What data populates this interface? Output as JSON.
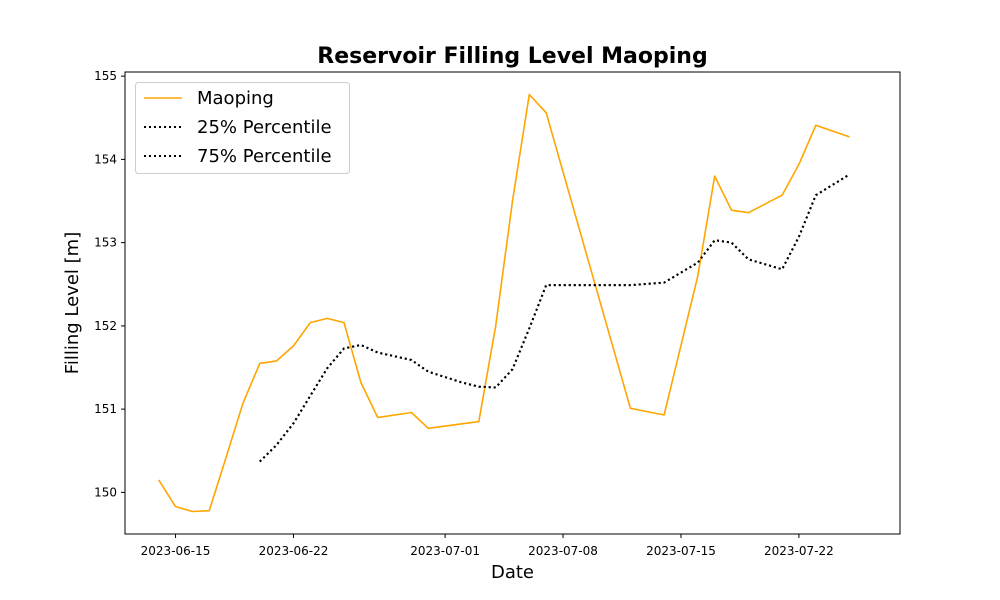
{
  "chart_data": {
    "type": "line",
    "title": "Reservoir Filling Level Maoping",
    "xlabel": "Date",
    "ylabel": "Filling Level [m]",
    "xlim": [
      "2023-06-12",
      "2023-07-28"
    ],
    "ylim": [
      149.5,
      155.05
    ],
    "x_ticks": [
      "2023-06-15",
      "2023-06-22",
      "2023-07-01",
      "2023-07-08",
      "2023-07-15",
      "2023-07-22"
    ],
    "y_ticks": [
      "150",
      "151",
      "152",
      "153",
      "154",
      "155"
    ],
    "grid": false,
    "legend_position": "upper-left",
    "series": [
      {
        "name": "Maoping",
        "color": "#ffa500",
        "style": "solid",
        "points": [
          [
            "2023-06-14",
            150.15
          ],
          [
            "2023-06-15",
            149.83
          ],
          [
            "2023-06-16",
            149.77
          ],
          [
            "2023-06-17",
            149.78
          ],
          [
            "2023-06-18",
            150.42
          ],
          [
            "2023-06-19",
            151.07
          ],
          [
            "2023-06-20",
            151.55
          ],
          [
            "2023-06-21",
            151.58
          ],
          [
            "2023-06-22",
            151.76
          ],
          [
            "2023-06-23",
            152.04
          ],
          [
            "2023-06-24",
            152.09
          ],
          [
            "2023-06-25",
            152.04
          ],
          [
            "2023-06-26",
            151.32
          ],
          [
            "2023-06-27",
            150.9
          ],
          [
            "2023-06-29",
            150.96
          ],
          [
            "2023-06-30",
            150.77
          ],
          [
            "2023-07-03",
            150.85
          ],
          [
            "2023-07-04",
            152.0
          ],
          [
            "2023-07-05",
            153.5
          ],
          [
            "2023-07-06",
            154.78
          ],
          [
            "2023-07-07",
            154.56
          ],
          [
            "2023-07-12",
            151.01
          ],
          [
            "2023-07-14",
            150.93
          ],
          [
            "2023-07-16",
            152.6
          ],
          [
            "2023-07-17",
            153.8
          ],
          [
            "2023-07-18",
            153.39
          ],
          [
            "2023-07-19",
            153.36
          ],
          [
            "2023-07-21",
            153.57
          ],
          [
            "2023-07-22",
            153.94
          ],
          [
            "2023-07-23",
            154.41
          ],
          [
            "2023-07-25",
            154.27
          ]
        ]
      },
      {
        "name": "25% Percentile",
        "color": "#000000",
        "style": "dotted",
        "points": [
          [
            "2023-06-20",
            150.37
          ],
          [
            "2023-06-21",
            150.57
          ],
          [
            "2023-06-22",
            150.83
          ],
          [
            "2023-06-23",
            151.16
          ],
          [
            "2023-06-24",
            151.49
          ],
          [
            "2023-06-25",
            151.73
          ],
          [
            "2023-06-26",
            151.77
          ],
          [
            "2023-06-27",
            151.68
          ],
          [
            "2023-06-29",
            151.59
          ],
          [
            "2023-06-30",
            151.45
          ],
          [
            "2023-07-02",
            151.32
          ],
          [
            "2023-07-03",
            151.27
          ],
          [
            "2023-07-04",
            151.26
          ],
          [
            "2023-07-05",
            151.48
          ],
          [
            "2023-07-06",
            151.97
          ],
          [
            "2023-07-07",
            152.49
          ],
          [
            "2023-07-10",
            152.49
          ],
          [
            "2023-07-12",
            152.49
          ],
          [
            "2023-07-14",
            152.52
          ],
          [
            "2023-07-16",
            152.76
          ],
          [
            "2023-07-17",
            153.03
          ],
          [
            "2023-07-18",
            153.0
          ],
          [
            "2023-07-19",
            152.8
          ],
          [
            "2023-07-21",
            152.68
          ],
          [
            "2023-07-22",
            153.07
          ],
          [
            "2023-07-23",
            153.57
          ],
          [
            "2023-07-25",
            153.82
          ]
        ]
      },
      {
        "name": "75% Percentile",
        "color": "#000000",
        "style": "dotted",
        "points": [
          [
            "2023-06-20",
            150.37
          ],
          [
            "2023-06-21",
            150.57
          ],
          [
            "2023-06-22",
            150.83
          ],
          [
            "2023-06-23",
            151.16
          ],
          [
            "2023-06-24",
            151.49
          ],
          [
            "2023-06-25",
            151.73
          ],
          [
            "2023-06-26",
            151.77
          ],
          [
            "2023-06-27",
            151.68
          ],
          [
            "2023-06-29",
            151.59
          ],
          [
            "2023-06-30",
            151.45
          ],
          [
            "2023-07-02",
            151.32
          ],
          [
            "2023-07-03",
            151.27
          ],
          [
            "2023-07-04",
            151.26
          ],
          [
            "2023-07-05",
            151.48
          ],
          [
            "2023-07-06",
            151.97
          ],
          [
            "2023-07-07",
            152.49
          ],
          [
            "2023-07-10",
            152.49
          ],
          [
            "2023-07-12",
            152.49
          ],
          [
            "2023-07-14",
            152.52
          ],
          [
            "2023-07-16",
            152.76
          ],
          [
            "2023-07-17",
            153.03
          ],
          [
            "2023-07-18",
            153.0
          ],
          [
            "2023-07-19",
            152.8
          ],
          [
            "2023-07-21",
            152.68
          ],
          [
            "2023-07-22",
            153.07
          ],
          [
            "2023-07-23",
            153.57
          ],
          [
            "2023-07-25",
            153.82
          ]
        ]
      }
    ]
  }
}
